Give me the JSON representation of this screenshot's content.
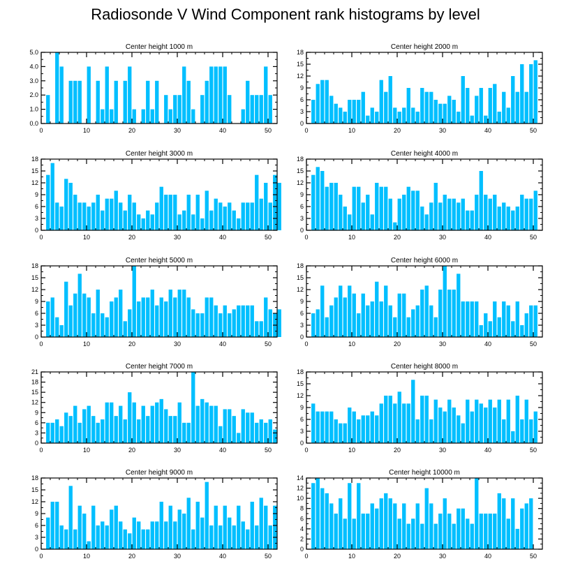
{
  "title": "Radiosonde V Wind Component rank histograms by level",
  "colors": {
    "bar": "#00BFFF",
    "axis": "#000000",
    "background": "#ffffff"
  },
  "chart_data": [
    {
      "type": "bar",
      "title": "Center height 1000 m",
      "xlim": [
        0,
        52
      ],
      "xticks": [
        0,
        10,
        20,
        30,
        40,
        50
      ],
      "xtick_labels": [
        "0",
        "10",
        "20",
        "30",
        "40",
        "50"
      ],
      "ylim": [
        0,
        5
      ],
      "yticks": [
        0,
        1,
        2,
        3,
        4,
        5
      ],
      "ytick_labels": [
        "0.0",
        "1.0",
        "2.0",
        "3.0",
        "4.0",
        "5.0"
      ],
      "values": [
        0,
        2,
        0,
        5,
        4,
        0,
        3,
        3,
        3,
        0,
        4,
        0,
        3,
        1,
        4,
        1,
        3,
        0,
        3,
        4,
        1,
        0,
        1,
        3,
        1,
        3,
        0,
        2,
        1,
        2,
        2,
        4,
        3,
        1,
        0,
        2,
        3,
        4,
        4,
        4,
        4,
        2,
        0,
        0,
        1,
        3,
        2,
        2,
        2,
        4,
        2
      ]
    },
    {
      "type": "bar",
      "title": "Center height 2000 m",
      "xlim": [
        0,
        52
      ],
      "xticks": [
        0,
        10,
        20,
        30,
        40,
        50
      ],
      "xtick_labels": [
        "0",
        "10",
        "20",
        "30",
        "40",
        "50"
      ],
      "ylim": [
        0,
        18
      ],
      "yticks": [
        0,
        3,
        6,
        9,
        12,
        15,
        18
      ],
      "ytick_labels": [
        "0",
        "3",
        "6",
        "9",
        "12",
        "15",
        "18"
      ],
      "values": [
        0,
        6,
        10,
        11,
        11,
        7,
        5,
        4,
        3,
        6,
        6,
        6,
        8,
        2,
        4,
        3,
        11,
        8,
        12,
        4,
        3,
        4,
        9,
        4,
        3,
        9,
        8,
        8,
        6,
        5,
        5,
        7,
        6,
        3,
        12,
        9,
        2,
        7,
        9,
        2,
        9,
        10,
        3,
        8,
        4,
        12,
        8,
        15,
        8,
        15,
        16
      ]
    },
    {
      "type": "bar",
      "title": "Center height 3000 m",
      "xlim": [
        0,
        52
      ],
      "xticks": [
        0,
        10,
        20,
        30,
        40,
        50
      ],
      "xtick_labels": [
        "0",
        "10",
        "20",
        "30",
        "40",
        "50"
      ],
      "ylim": [
        0,
        18
      ],
      "yticks": [
        0,
        3,
        6,
        9,
        12,
        15,
        18
      ],
      "ytick_labels": [
        "0",
        "3",
        "6",
        "9",
        "12",
        "15",
        "18"
      ],
      "values": [
        0,
        14,
        17,
        7,
        6,
        13,
        12,
        9,
        7,
        7,
        6,
        7,
        9,
        5,
        8,
        8,
        10,
        7,
        5,
        9,
        7,
        4,
        3,
        5,
        4,
        7,
        11,
        9,
        9,
        9,
        4,
        5,
        9,
        4,
        9,
        3,
        10,
        5,
        8,
        7,
        6,
        7,
        5,
        3,
        7,
        7,
        7,
        14,
        8,
        12,
        7,
        14,
        12
      ]
    },
    {
      "type": "bar",
      "title": "Center height 4000 m",
      "xlim": [
        0,
        52
      ],
      "xticks": [
        0,
        10,
        20,
        30,
        40,
        50
      ],
      "xtick_labels": [
        "0",
        "10",
        "20",
        "30",
        "40",
        "50"
      ],
      "ylim": [
        0,
        18
      ],
      "yticks": [
        0,
        3,
        6,
        9,
        12,
        15,
        18
      ],
      "ytick_labels": [
        "0",
        "3",
        "6",
        "9",
        "12",
        "15",
        "18"
      ],
      "values": [
        0,
        14,
        16,
        15,
        11,
        12,
        12,
        9,
        6,
        4,
        11,
        11,
        7,
        9,
        4,
        12,
        11,
        11,
        8,
        2,
        8,
        9,
        11,
        10,
        10,
        6,
        4,
        7,
        12,
        7,
        9,
        8,
        8,
        7,
        8,
        5,
        5,
        9,
        15,
        9,
        8,
        9,
        6,
        7,
        6,
        5,
        6,
        9,
        8,
        8,
        10
      ]
    },
    {
      "type": "bar",
      "title": "Center height 5000 m",
      "xlim": [
        0,
        52
      ],
      "xticks": [
        0,
        10,
        20,
        30,
        40,
        50
      ],
      "xtick_labels": [
        "0",
        "10",
        "20",
        "30",
        "40",
        "50"
      ],
      "ylim": [
        0,
        18
      ],
      "yticks": [
        0,
        3,
        6,
        9,
        12,
        15,
        18
      ],
      "ytick_labels": [
        "0",
        "3",
        "6",
        "9",
        "12",
        "15",
        "18"
      ],
      "values": [
        0,
        9,
        10,
        5,
        3,
        14,
        8,
        11,
        16,
        11,
        10,
        6,
        12,
        6,
        5,
        9,
        10,
        12,
        4,
        7,
        18,
        9,
        10,
        10,
        12,
        8,
        10,
        9,
        12,
        10,
        12,
        12,
        10,
        7,
        6,
        6,
        10,
        10,
        8,
        6,
        8,
        6,
        7,
        8,
        8,
        8,
        8,
        4,
        4,
        10,
        7,
        6,
        7
      ]
    },
    {
      "type": "bar",
      "title": "Center height 6000 m",
      "xlim": [
        0,
        52
      ],
      "xticks": [
        0,
        10,
        20,
        30,
        40,
        50
      ],
      "xtick_labels": [
        "0",
        "10",
        "20",
        "30",
        "40",
        "50"
      ],
      "ylim": [
        0,
        18
      ],
      "yticks": [
        0,
        3,
        6,
        9,
        12,
        15,
        18
      ],
      "ytick_labels": [
        "0",
        "3",
        "6",
        "9",
        "12",
        "15",
        "18"
      ],
      "values": [
        0,
        6,
        7,
        13,
        5,
        8,
        10,
        13,
        10,
        13,
        11,
        6,
        11,
        8,
        9,
        14,
        9,
        13,
        8,
        5,
        11,
        11,
        5,
        7,
        8,
        12,
        13,
        8,
        5,
        12,
        18,
        12,
        12,
        16,
        9,
        9,
        9,
        9,
        3,
        6,
        4,
        9,
        5,
        9,
        8,
        4,
        9,
        3,
        6,
        8,
        8
      ]
    },
    {
      "type": "bar",
      "title": "Center height 7000 m",
      "xlim": [
        0,
        52
      ],
      "xticks": [
        0,
        10,
        20,
        30,
        40,
        50
      ],
      "xtick_labels": [
        "0",
        "10",
        "20",
        "30",
        "40",
        "50"
      ],
      "ylim": [
        0,
        21
      ],
      "yticks": [
        0,
        3,
        6,
        9,
        12,
        15,
        18,
        21
      ],
      "ytick_labels": [
        "0",
        "3",
        "6",
        "9",
        "12",
        "15",
        "18",
        "21"
      ],
      "values": [
        0,
        6,
        6,
        7,
        5,
        9,
        8,
        11,
        6,
        10,
        11,
        8,
        6,
        7,
        12,
        12,
        8,
        11,
        7,
        15,
        12,
        7,
        11,
        8,
        11,
        12,
        13,
        10,
        8,
        8,
        12,
        6,
        6,
        21,
        11,
        13,
        12,
        11,
        11,
        5,
        10,
        10,
        8,
        3,
        10,
        9,
        9,
        6,
        7,
        6,
        7,
        4
      ]
    },
    {
      "type": "bar",
      "title": "Center height 8000 m",
      "xlim": [
        0,
        52
      ],
      "xticks": [
        0,
        10,
        20,
        30,
        40,
        50
      ],
      "xtick_labels": [
        "0",
        "10",
        "20",
        "30",
        "40",
        "50"
      ],
      "ylim": [
        0,
        18
      ],
      "yticks": [
        0,
        3,
        6,
        9,
        12,
        15,
        18
      ],
      "ytick_labels": [
        "0",
        "3",
        "6",
        "9",
        "12",
        "15",
        "18"
      ],
      "values": [
        0,
        10,
        8,
        8,
        8,
        8,
        6,
        5,
        5,
        9,
        8,
        6,
        7,
        7,
        8,
        7,
        10,
        12,
        12,
        10,
        13,
        10,
        10,
        16,
        6,
        12,
        12,
        6,
        11,
        9,
        8,
        11,
        9,
        7,
        5,
        11,
        8,
        11,
        10,
        9,
        11,
        9,
        11,
        6,
        11,
        3,
        12,
        6,
        11,
        6,
        8
      ]
    },
    {
      "type": "bar",
      "title": "Center height 9000 m",
      "xlim": [
        0,
        52
      ],
      "xticks": [
        0,
        10,
        20,
        30,
        40,
        50
      ],
      "xtick_labels": [
        "0",
        "10",
        "20",
        "30",
        "40",
        "50"
      ],
      "ylim": [
        0,
        18
      ],
      "yticks": [
        0,
        3,
        6,
        9,
        12,
        15,
        18
      ],
      "ytick_labels": [
        "0",
        "3",
        "6",
        "9",
        "12",
        "15",
        "18"
      ],
      "values": [
        0,
        8,
        12,
        12,
        6,
        5,
        16,
        5,
        11,
        9,
        2,
        11,
        6,
        7,
        6,
        10,
        11,
        7,
        5,
        4,
        8,
        7,
        5,
        5,
        7,
        7,
        12,
        7,
        11,
        7,
        10,
        9,
        13,
        5,
        12,
        8,
        17,
        6,
        11,
        6,
        11,
        8,
        6,
        11,
        7,
        5,
        12,
        6,
        13,
        11,
        6,
        11
      ]
    },
    {
      "type": "bar",
      "title": "Center height 10000 m",
      "xlim": [
        0,
        52
      ],
      "xticks": [
        0,
        10,
        20,
        30,
        40,
        50
      ],
      "xtick_labels": [
        "0",
        "10",
        "20",
        "30",
        "40",
        "50"
      ],
      "ylim": [
        0,
        14
      ],
      "yticks": [
        0,
        2,
        4,
        6,
        8,
        10,
        12,
        14
      ],
      "ytick_labels": [
        "0",
        "2",
        "4",
        "6",
        "8",
        "10",
        "12",
        "14"
      ],
      "values": [
        0,
        13,
        14,
        12,
        11,
        9,
        7,
        10,
        6,
        13,
        6,
        13,
        7,
        7,
        9,
        8,
        10,
        11,
        10,
        9,
        6,
        9,
        5,
        6,
        9,
        5,
        12,
        9,
        5,
        7,
        10,
        7,
        5,
        8,
        8,
        6,
        5,
        14,
        7,
        7,
        7,
        7,
        11,
        10,
        6,
        10,
        4,
        8,
        9,
        10
      ]
    }
  ]
}
